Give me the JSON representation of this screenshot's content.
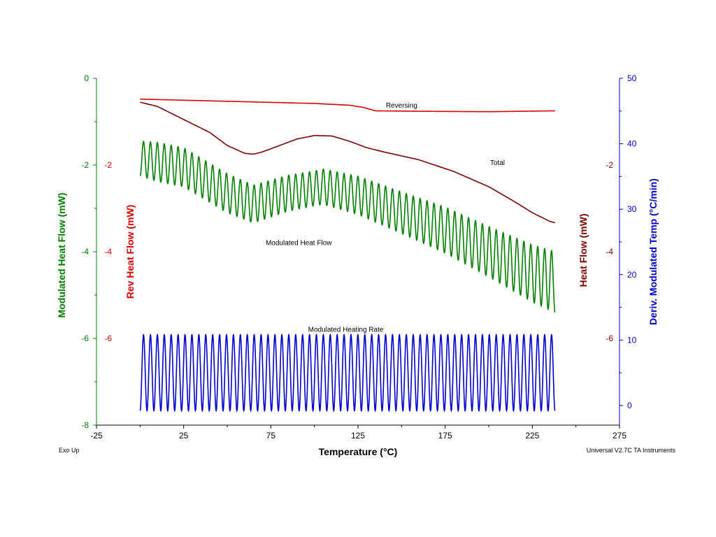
{
  "chart_data": {
    "type": "line",
    "x_axis": {
      "label": "Temperature (°C)",
      "range": [
        -25,
        275
      ],
      "ticks": [
        -25,
        25,
        75,
        125,
        175,
        225,
        275
      ],
      "tick_labels": [
        "-25",
        "25",
        "75",
        "125",
        "175",
        "225",
        "275"
      ]
    },
    "left_axis": {
      "range": [
        -8,
        0
      ],
      "ticks": [
        0,
        -2,
        -4,
        -6,
        -8
      ],
      "labels": [
        "0",
        "-2",
        "-4",
        "-6",
        "-8"
      ],
      "red_ticks": [
        -2,
        -4,
        -6
      ],
      "red_labels": [
        "-2",
        "-4",
        "-6"
      ],
      "title_green": "Modulated Heat Flow (mW)",
      "title_red": "Rev Heat Flow (mW)",
      "color_green": "#008000",
      "color_red": "#dd0000"
    },
    "right_axis_heatflow": {
      "ticks": [
        -2,
        -4,
        -6
      ],
      "labels": [
        "-2",
        "-4",
        "-6"
      ],
      "title": "Heat Flow (mW)",
      "color": "#800000"
    },
    "right_axis_temp": {
      "range": [
        -3,
        50
      ],
      "ticks": [
        50,
        40,
        30,
        20,
        10,
        0
      ],
      "labels": [
        "50",
        "40",
        "30",
        "20",
        "10",
        "0"
      ],
      "title": "Deriv. Modulated Temp (°C/min)",
      "color": "#0000cc"
    },
    "series": [
      {
        "name": "Reversing",
        "color": "#dd0000",
        "axis": "left",
        "x": [
          0,
          50,
          100,
          120,
          128,
          135,
          160,
          200,
          238
        ],
        "y": [
          -0.48,
          -0.53,
          -0.58,
          -0.62,
          -0.67,
          -0.75,
          -0.76,
          -0.77,
          -0.75
        ]
      },
      {
        "name": "Total",
        "color": "#800000",
        "axis": "left",
        "x": [
          0,
          10,
          20,
          30,
          40,
          50,
          60,
          65,
          70,
          80,
          90,
          100,
          110,
          120,
          130,
          140,
          160,
          180,
          200,
          215,
          225,
          235,
          238
        ],
        "y": [
          -0.55,
          -0.65,
          -0.85,
          -1.05,
          -1.25,
          -1.55,
          -1.73,
          -1.75,
          -1.7,
          -1.55,
          -1.4,
          -1.32,
          -1.33,
          -1.45,
          -1.6,
          -1.7,
          -1.88,
          -2.15,
          -2.5,
          -2.85,
          -3.1,
          -3.3,
          -3.33
        ]
      },
      {
        "name": "Modulated Heat Flow",
        "color": "#008000",
        "axis": "left",
        "modulated": true,
        "cycles": 60,
        "x_start": 0,
        "x_end": 238,
        "center": {
          "x": [
            0,
            25,
            50,
            65,
            85,
            105,
            125,
            150,
            175,
            200,
            225,
            238
          ],
          "y": [
            -1.85,
            -2.05,
            -2.65,
            -2.9,
            -2.65,
            -2.5,
            -2.7,
            -3.1,
            -3.5,
            -4.0,
            -4.5,
            -4.7
          ]
        },
        "amplitude": {
          "x": [
            0,
            10,
            50,
            100,
            150,
            200,
            238
          ],
          "y": [
            0.4,
            0.45,
            0.45,
            0.4,
            0.48,
            0.58,
            0.7
          ]
        }
      },
      {
        "name": "Modulated Heating Rate",
        "color": "#0000cc",
        "axis": "right_temp",
        "modulated": true,
        "cycles": 60,
        "x_start": 0,
        "x_end": 238,
        "center": 5,
        "amplitude": 5.8
      }
    ],
    "annotations": [
      {
        "text": "Reversing",
        "x": 150,
        "y": -0.68
      },
      {
        "text": "Total",
        "x": 205,
        "y": -2.0
      },
      {
        "text": "Modulated Heat Flow",
        "x": 91,
        "y": -3.85
      },
      {
        "text": "Modulated Heating Rate",
        "x": 118,
        "y": -5.85
      }
    ],
    "footer_left": "Exo Up",
    "footer_right": "Universal V2.7C TA Instruments",
    "grid": false,
    "legend": "none"
  }
}
